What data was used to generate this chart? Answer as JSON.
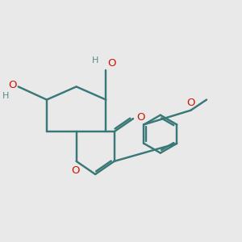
{
  "bg_color": "#e9e9e9",
  "bond_color": "#3a7878",
  "oxygen_color": "#cc1500",
  "hydrogen_color": "#5a8888",
  "line_width": 1.75,
  "font_size_O": 9.5,
  "font_size_H": 8.0,
  "xlim": [
    0.5,
    10.5
  ],
  "ylim": [
    2.5,
    8.8
  ]
}
